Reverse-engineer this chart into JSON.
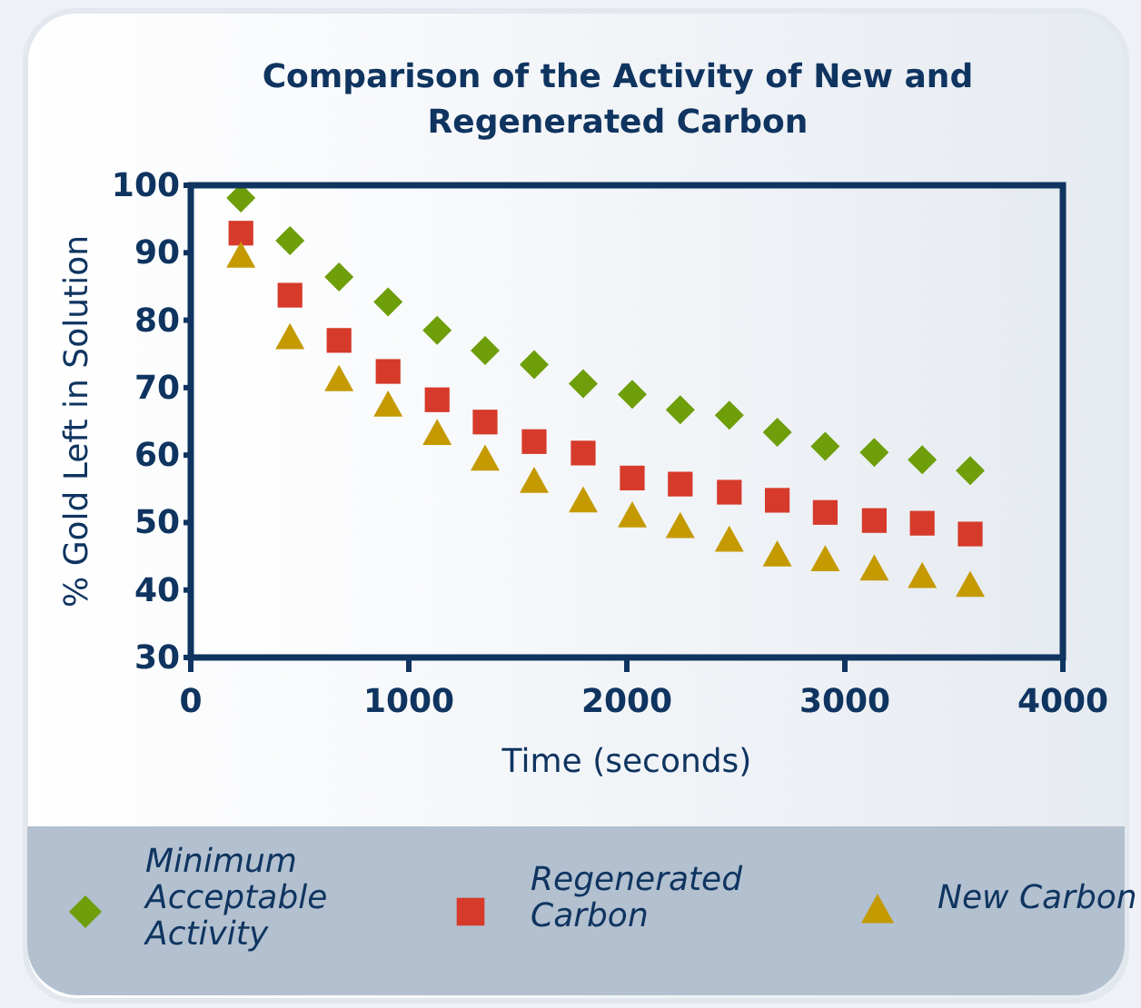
{
  "chart_data": {
    "type": "scatter",
    "title": "Comparison of the Activity of New and Regenerated Carbon",
    "xlabel": "Time (seconds)",
    "ylabel": "% Gold Left in Solution",
    "x": [
      230,
      455,
      680,
      905,
      1130,
      1350,
      1575,
      1800,
      2025,
      2245,
      2470,
      2690,
      2910,
      3135,
      3355,
      3575
    ],
    "series": [
      {
        "name": "Minimum Acceptable Activity",
        "color": "#6e9e0a",
        "marker": "diamond",
        "values": [
          98.1,
          91.8,
          86.4,
          82.7,
          78.5,
          75.5,
          73.4,
          70.6,
          69.0,
          66.7,
          65.9,
          63.4,
          61.3,
          60.4,
          59.3,
          57.7
        ]
      },
      {
        "name": "Regenerated Carbon",
        "color": "#d63a2a",
        "marker": "square",
        "values": [
          92.9,
          83.7,
          77.0,
          72.4,
          68.2,
          64.9,
          62.0,
          60.3,
          56.6,
          55.7,
          54.5,
          53.3,
          51.5,
          50.3,
          49.9,
          48.3
        ]
      },
      {
        "name": "New Carbon",
        "color": "#c49a00",
        "marker": "triangle",
        "values": [
          89.3,
          77.2,
          71.0,
          67.2,
          63.0,
          59.2,
          55.9,
          53.0,
          50.8,
          49.2,
          47.2,
          45.0,
          44.3,
          42.9,
          41.8,
          40.5
        ]
      }
    ],
    "xlim": [
      0,
      4000
    ],
    "xticks": [
      0,
      1000,
      2000,
      3000,
      4000
    ],
    "ylim": [
      30,
      100
    ],
    "yticks": [
      30,
      40,
      50,
      60,
      70,
      80,
      90,
      100
    ],
    "grid": false,
    "legend": "bottom"
  }
}
